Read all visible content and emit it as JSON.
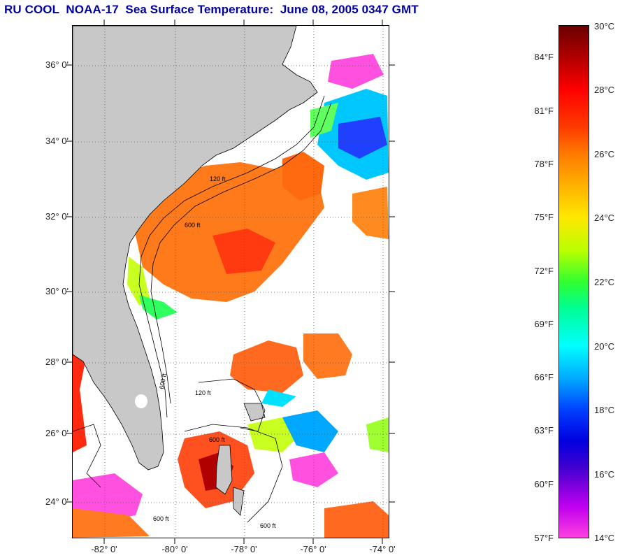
{
  "title": "RU COOL  NOAA-17  Sea Surface Temperature:  June 08, 2005 0347 GMT",
  "map": {
    "lat_labels": [
      "36° 0'",
      "34° 0'",
      "32° 0'",
      "30° 0'",
      "28° 0'",
      "26° 0'",
      "24° 0'"
    ],
    "lon_labels": [
      "-82° 0'",
      "-80° 0'",
      "-78° 0'",
      "-76° 0'",
      "-74° 0'"
    ],
    "isobath_labels": [
      "120 ft",
      "600 ft",
      "600 ft",
      "120 ft",
      "600 ft",
      "600 ft",
      "600 ft"
    ],
    "colors": {
      "land": "#c8c8c8",
      "ocean_cloud": "#ffffff",
      "grid": "#555555"
    }
  },
  "colorbar": {
    "fahrenheit_labels": [
      "84°F",
      "81°F",
      "78°F",
      "75°F",
      "72°F",
      "69°F",
      "66°F",
      "63°F",
      "60°F",
      "57°F"
    ],
    "celsius_labels": [
      "30°C",
      "28°C",
      "26°C",
      "24°C",
      "22°C",
      "20°C",
      "18°C",
      "16°C",
      "14°C"
    ],
    "range_c": [
      14,
      30
    ]
  }
}
